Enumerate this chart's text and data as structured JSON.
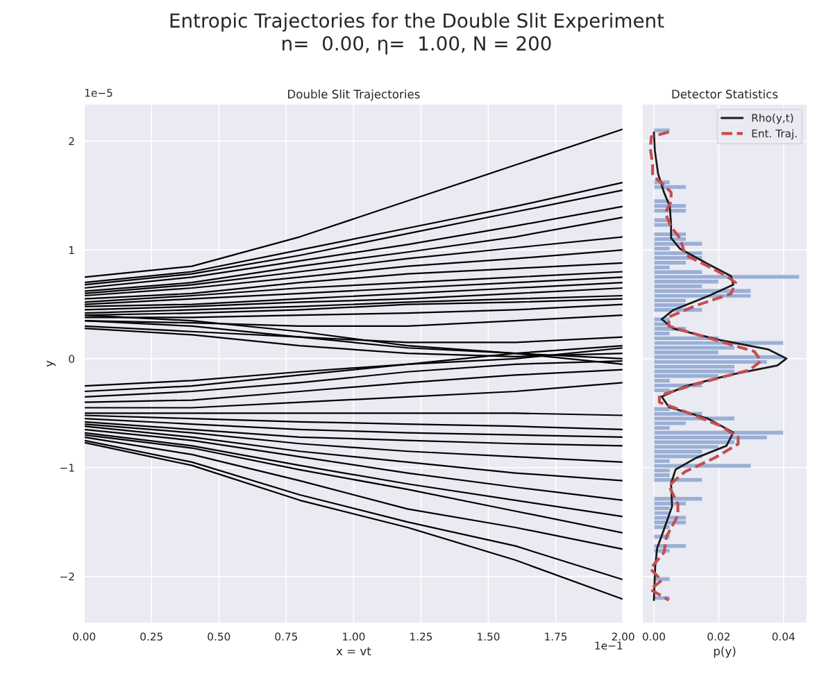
{
  "chart_data": [
    {
      "type": "line",
      "title": "Double Slit Trajectories",
      "xlabel": "x = vt",
      "ylabel": "y",
      "annotations": [
        "Entropic Trajectories for the Double Slit Experiment",
        "n=  0.00, η=  1.00, N = 200",
        "1e−5",
        "1e−1"
      ],
      "x": [
        0,
        0.4,
        0.8,
        1.2,
        1.6,
        2.0
      ],
      "xlim": [
        0,
        2
      ],
      "xticks": [
        {
          "value": 0,
          "label": "0.00"
        },
        0.25,
        {
          "value": 0.5,
          "label": "0.50"
        },
        0.75,
        {
          "value": 1,
          "label": "1.00"
        },
        1.25,
        {
          "value": 1.5,
          "label": "1.50"
        },
        1.75,
        {
          "value": 2,
          "label": "2.00"
        }
      ],
      "ylim": [
        -2.43,
        2.34
      ],
      "yticks": [
        {
          "value": -2,
          "label": "−2"
        },
        {
          "value": -1,
          "label": "−1"
        },
        0,
        1,
        2
      ],
      "grid": true,
      "series": [
        {
          "color": "#000000",
          "values": [
            0.75,
            0.85,
            1.12,
            1.45,
            1.78,
            2.11
          ]
        },
        {
          "color": "#000000",
          "values": [
            0.7,
            0.8,
            1.0,
            1.2,
            1.4,
            1.62
          ]
        },
        {
          "color": "#000000",
          "values": [
            0.68,
            0.78,
            0.95,
            1.15,
            1.35,
            1.55
          ]
        },
        {
          "color": "#000000",
          "values": [
            0.65,
            0.75,
            0.9,
            1.05,
            1.22,
            1.4
          ]
        },
        {
          "color": "#000000",
          "values": [
            0.62,
            0.7,
            0.85,
            0.98,
            1.12,
            1.3
          ]
        },
        {
          "color": "#000000",
          "values": [
            0.6,
            0.68,
            0.8,
            0.92,
            1.02,
            1.12
          ]
        },
        {
          "color": "#000000",
          "values": [
            0.58,
            0.65,
            0.75,
            0.85,
            0.92,
            1.0
          ]
        },
        {
          "color": "#000000",
          "values": [
            0.55,
            0.6,
            0.7,
            0.78,
            0.83,
            0.88
          ]
        },
        {
          "color": "#000000",
          "values": [
            0.52,
            0.58,
            0.65,
            0.7,
            0.75,
            0.8
          ]
        },
        {
          "color": "#000000",
          "values": [
            0.5,
            0.55,
            0.6,
            0.65,
            0.7,
            0.75
          ]
        },
        {
          "color": "#000000",
          "values": [
            0.48,
            0.5,
            0.55,
            0.6,
            0.65,
            0.7
          ]
        },
        {
          "color": "#000000",
          "values": [
            0.45,
            0.48,
            0.52,
            0.55,
            0.6,
            0.65
          ]
        },
        {
          "color": "#000000",
          "values": [
            0.42,
            0.45,
            0.48,
            0.52,
            0.55,
            0.58
          ]
        },
        {
          "color": "#000000",
          "values": [
            0.4,
            0.42,
            0.45,
            0.5,
            0.52,
            0.55
          ]
        },
        {
          "color": "#000000",
          "values": [
            0.38,
            0.38,
            0.4,
            0.42,
            0.45,
            0.5
          ]
        },
        {
          "color": "#000000",
          "values": [
            0.35,
            0.33,
            0.3,
            0.3,
            0.35,
            0.4
          ]
        },
        {
          "color": "#000000",
          "values": [
            0.3,
            0.25,
            0.2,
            0.15,
            0.15,
            0.2
          ]
        },
        {
          "color": "#000000",
          "values": [
            0.28,
            0.22,
            0.12,
            0.05,
            0.02,
            0.05
          ]
        },
        {
          "color": "#000000",
          "values": [
            0.35,
            0.3,
            0.2,
            0.1,
            0.05,
            0.0
          ]
        },
        {
          "color": "#000000",
          "values": [
            0.4,
            0.35,
            0.25,
            0.12,
            0.05,
            -0.05
          ]
        },
        {
          "color": "#000000",
          "values": [
            -0.25,
            -0.2,
            -0.12,
            -0.05,
            0.0,
            0.1
          ]
        },
        {
          "color": "#000000",
          "values": [
            -0.3,
            -0.25,
            -0.15,
            -0.05,
            0.05,
            0.12
          ]
        },
        {
          "color": "#000000",
          "values": [
            -0.35,
            -0.3,
            -0.22,
            -0.12,
            -0.05,
            -0.02
          ]
        },
        {
          "color": "#000000",
          "values": [
            -0.4,
            -0.38,
            -0.3,
            -0.22,
            -0.15,
            -0.1
          ]
        },
        {
          "color": "#000000",
          "values": [
            -0.45,
            -0.45,
            -0.4,
            -0.35,
            -0.3,
            -0.22
          ]
        },
        {
          "color": "#000000",
          "values": [
            -0.5,
            -0.5,
            -0.5,
            -0.5,
            -0.5,
            -0.52
          ]
        },
        {
          "color": "#000000",
          "values": [
            -0.52,
            -0.55,
            -0.58,
            -0.6,
            -0.62,
            -0.65
          ]
        },
        {
          "color": "#000000",
          "values": [
            -0.55,
            -0.6,
            -0.65,
            -0.68,
            -0.7,
            -0.72
          ]
        },
        {
          "color": "#000000",
          "values": [
            -0.58,
            -0.65,
            -0.72,
            -0.75,
            -0.78,
            -0.8
          ]
        },
        {
          "color": "#000000",
          "values": [
            -0.6,
            -0.68,
            -0.78,
            -0.85,
            -0.9,
            -0.95
          ]
        },
        {
          "color": "#000000",
          "values": [
            -0.62,
            -0.72,
            -0.85,
            -0.95,
            -1.05,
            -1.12
          ]
        },
        {
          "color": "#000000",
          "values": [
            -0.65,
            -0.75,
            -0.9,
            -1.05,
            -1.18,
            -1.3
          ]
        },
        {
          "color": "#000000",
          "values": [
            -0.68,
            -0.8,
            -0.98,
            -1.15,
            -1.3,
            -1.45
          ]
        },
        {
          "color": "#000000",
          "values": [
            -0.7,
            -0.82,
            -1.02,
            -1.2,
            -1.4,
            -1.6
          ]
        },
        {
          "color": "#000000",
          "values": [
            -0.72,
            -0.88,
            -1.12,
            -1.38,
            -1.55,
            -1.75
          ]
        },
        {
          "color": "#000000",
          "values": [
            -0.75,
            -0.95,
            -1.25,
            -1.5,
            -1.72,
            -2.03
          ]
        },
        {
          "color": "#000000",
          "values": [
            -0.77,
            -0.98,
            -1.3,
            -1.55,
            -1.85,
            -2.21
          ]
        }
      ]
    },
    {
      "type": "histogram",
      "orientation": "horizontal",
      "title": "Detector Statistics",
      "xlabel": "p(y)",
      "color": "#9aafd6",
      "bins": [
        -2.22,
        -2.1766,
        -2.1332,
        -2.0898,
        -2.0464,
        -2.003,
        -1.9596,
        -1.9162,
        -1.8728,
        -1.8294,
        -1.786,
        -1.7426,
        -1.6992,
        -1.6558,
        -1.6124,
        -1.569,
        -1.5256,
        -1.4822,
        -1.4388,
        -1.3954,
        -1.352,
        -1.3086,
        -1.2652,
        -1.2218,
        -1.1784,
        -1.135,
        -1.0916,
        -1.0482,
        -1.0048,
        -0.9614,
        -0.918,
        -0.8746,
        -0.8312,
        -0.7878,
        -0.7444,
        -0.701,
        -0.6576,
        -0.6142,
        -0.5708,
        -0.5274,
        -0.484,
        -0.4406,
        -0.3972,
        -0.3538,
        -0.3104,
        -0.267,
        -0.2236,
        -0.1802,
        -0.1368,
        -0.0934,
        -0.05,
        -0.0066,
        0.0368,
        0.0802,
        0.1236,
        0.167,
        0.2104,
        0.2538,
        0.2972,
        0.3406,
        0.384,
        0.4274,
        0.4708,
        0.5142,
        0.5576,
        0.601,
        0.6444,
        0.6878,
        0.7312,
        0.7746,
        0.818,
        0.8614,
        0.9048,
        0.9482,
        0.9916,
        1.035,
        1.0784,
        1.1218,
        1.1652,
        1.2086,
        1.252,
        1.2954,
        1.3388,
        1.3822,
        1.4256,
        1.469,
        1.5124,
        1.5558,
        1.5992,
        1.6426,
        1.686,
        1.7294,
        1.7728,
        1.8162,
        1.8596,
        1.903,
        1.9464,
        1.9898,
        2.0332,
        2.0766,
        2.12
      ],
      "values": [
        0.005,
        0,
        0,
        0,
        0.005,
        0,
        0,
        0,
        0,
        0,
        0.005,
        0.01,
        0,
        0.005,
        0,
        0.005,
        0.01,
        0.01,
        0.005,
        0.005,
        0.01,
        0.015,
        0,
        0,
        0,
        0.015,
        0.005,
        0.005,
        0.03,
        0.005,
        0.015,
        0.015,
        0.02,
        0.025,
        0.035,
        0.04,
        0.005,
        0.01,
        0.025,
        0.015,
        0.005,
        0,
        0,
        0,
        0.005,
        0.015,
        0.005,
        0.02,
        0.025,
        0.025,
        0.035,
        0.04,
        0.02,
        0.025,
        0.04,
        0.02,
        0.005,
        0.01,
        0.005,
        0.005,
        0,
        0.015,
        0.01,
        0.01,
        0.03,
        0.03,
        0.015,
        0.02,
        0.045,
        0.015,
        0.005,
        0.01,
        0.015,
        0.015,
        0.005,
        0.015,
        0.01,
        0.01,
        0,
        0.005,
        0.005,
        0,
        0.01,
        0.01,
        0.005,
        0,
        0,
        0.01,
        0.005,
        0,
        0,
        0,
        0,
        0,
        0,
        0,
        0,
        0,
        0,
        0.005
      ],
      "xlim": [
        -0.0036,
        0.0473
      ],
      "xticks": [
        {
          "value": 0,
          "label": "0.00"
        },
        0.02,
        0.04
      ],
      "ylim": [
        -2.43,
        2.34
      ],
      "yticks": [
        -2,
        -1,
        0,
        1,
        2
      ],
      "tick_labels": "x",
      "grid": true,
      "legend": "top right",
      "series": [
        {
          "name": "Rho(y,t)",
          "type": "line",
          "line_style": "solid",
          "color": "#1a1a1a",
          "x": [
            2.08,
            1.91,
            1.7,
            1.53,
            1.4,
            1.23,
            1.11,
            1.01,
            0.87,
            0.76,
            0.68,
            0.575,
            0.448,
            0.363,
            0.278,
            0.172,
            0.087,
            0.002,
            -0.062,
            -0.146,
            -0.253,
            -0.348,
            -0.444,
            -0.55,
            -0.677,
            -0.8,
            -0.91,
            -1.017,
            -1.145,
            -1.357,
            -1.569,
            -1.74,
            -1.909,
            -2.217
          ],
          "values": [
            0,
            0.0003,
            0.0013,
            0.0031,
            0.0049,
            0.0053,
            0.0053,
            0.0081,
            0.0167,
            0.0238,
            0.0245,
            0.0167,
            0.006,
            0.0024,
            0.006,
            0.0203,
            0.0352,
            0.0409,
            0.0381,
            0.0238,
            0.0096,
            0.0024,
            0.0046,
            0.0167,
            0.0245,
            0.0224,
            0.0131,
            0.0067,
            0.0053,
            0.0056,
            0.0031,
            0.001,
            0.0004,
            0
          ]
        },
        {
          "name": "Ent. Traj.",
          "type": "line",
          "line_style": "dashed",
          "color": "#c44e52",
          "x": [
            2.083,
            2.04,
            1.93,
            1.785,
            1.68,
            1.615,
            1.53,
            1.445,
            1.34,
            1.21,
            1.106,
            0.957,
            0.85,
            0.76,
            0.7,
            0.597,
            0.49,
            0.384,
            0.3,
            0.193,
            0.066,
            -0.019,
            -0.104,
            -0.231,
            -0.338,
            -0.4,
            -0.486,
            -0.613,
            -0.72,
            -0.783,
            -0.91,
            -1.038,
            -1.166,
            -1.336,
            -1.44,
            -1.633,
            -1.78,
            -1.93,
            -2.036,
            -2.12,
            -2.217
          ],
          "values": [
            0.0046,
            -0.0008,
            -0.0011,
            -0.0004,
            -0.0004,
            0.0024,
            0.0053,
            0.0053,
            0.0035,
            0.0053,
            0.0081,
            0.0096,
            0.0167,
            0.0224,
            0.0252,
            0.0238,
            0.0131,
            0.0046,
            0.0046,
            0.0167,
            0.031,
            0.0331,
            0.0295,
            0.0131,
            0.0017,
            0.0017,
            0.0096,
            0.0203,
            0.026,
            0.026,
            0.0188,
            0.0096,
            0.0046,
            0.0074,
            0.0074,
            0.0039,
            0.0031,
            -0.0011,
            0.0024,
            -0.0011,
            0.0046
          ]
        }
      ]
    }
  ]
}
